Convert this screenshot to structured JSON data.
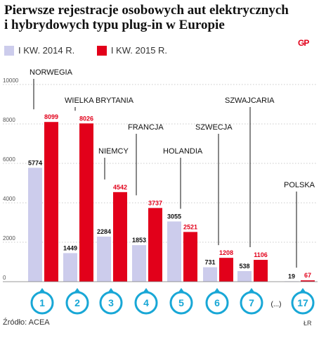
{
  "title": "Pierwsze rejestracje osobowych aut elektrycznych i hybrydowych typu plug-in w Europie",
  "logo_text": "GP",
  "source": "Źródło: ACEA",
  "credit": "ŁR",
  "colors": {
    "series_2014": "#ccccec",
    "series_2015": "#e2001a",
    "marker": "#18a7d6",
    "label_2015": "#e2001a",
    "label_2014": "#111111",
    "grid": "#bbbbbb"
  },
  "chart_data": {
    "type": "bar",
    "y_ticks": [
      "0",
      "2000",
      "4000",
      "6000",
      "8000",
      "10000"
    ],
    "ylim": [
      0,
      10000
    ],
    "grid": true,
    "legend_position": "top-left",
    "series": [
      {
        "name": "I KW. 2014 R.",
        "values": [
          5774,
          1449,
          2284,
          1853,
          3055,
          731,
          538,
          19
        ]
      },
      {
        "name": "I KW. 2015 R.",
        "values": [
          8099,
          8026,
          4542,
          3737,
          2521,
          1208,
          1106,
          67
        ]
      }
    ],
    "categories": [
      "NORWEGIA",
      "WIELKA BRYTANIA",
      "NIEMCY",
      "FRANCJA",
      "HOLANDIA",
      "SZWECJA",
      "SZWAJCARIA",
      "POLSKA"
    ],
    "value_labels_2014": [
      "5774",
      "1449",
      "2284",
      "1853",
      "3055",
      "731",
      "538",
      "19"
    ],
    "value_labels_2015": [
      "8099",
      "8026",
      "4542",
      "3737",
      "2521",
      "1208",
      "1106",
      "67"
    ],
    "ranks": [
      "1",
      "2",
      "3",
      "4",
      "5",
      "6",
      "7",
      "17"
    ],
    "gap_label": "(...)"
  }
}
